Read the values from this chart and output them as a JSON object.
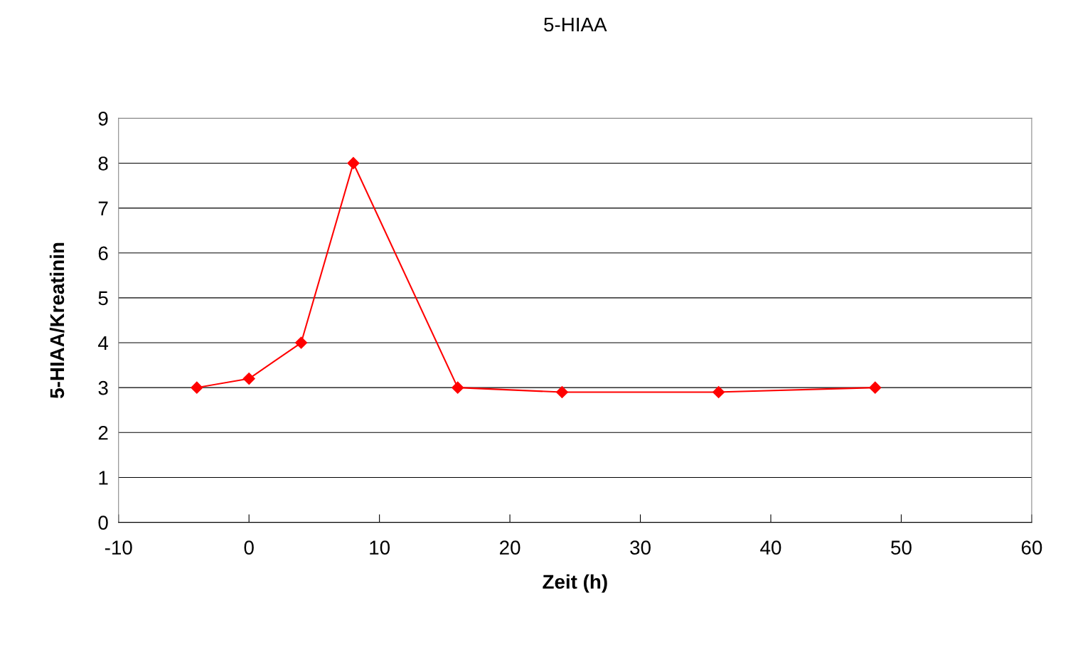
{
  "chart_data": {
    "type": "line",
    "title": "5-HIAA",
    "xlabel": "Zeit (h)",
    "ylabel": "5-HIAA/Kreatinin",
    "x": [
      -4,
      0,
      4,
      8,
      16,
      24,
      36,
      48
    ],
    "series": [
      {
        "color": "#ff0000",
        "values": [
          3,
          3.2,
          4,
          8,
          3,
          2.9,
          2.9,
          3
        ]
      }
    ],
    "xlim": [
      -10,
      60
    ],
    "xticks": [
      -10,
      0,
      10,
      20,
      30,
      40,
      50,
      60
    ],
    "ylim": [
      0,
      9
    ],
    "yticks": [
      0,
      1,
      2,
      3,
      4,
      5,
      6,
      7,
      8,
      9
    ],
    "grid": "y",
    "marker": "diamond",
    "line_style": "solid"
  }
}
